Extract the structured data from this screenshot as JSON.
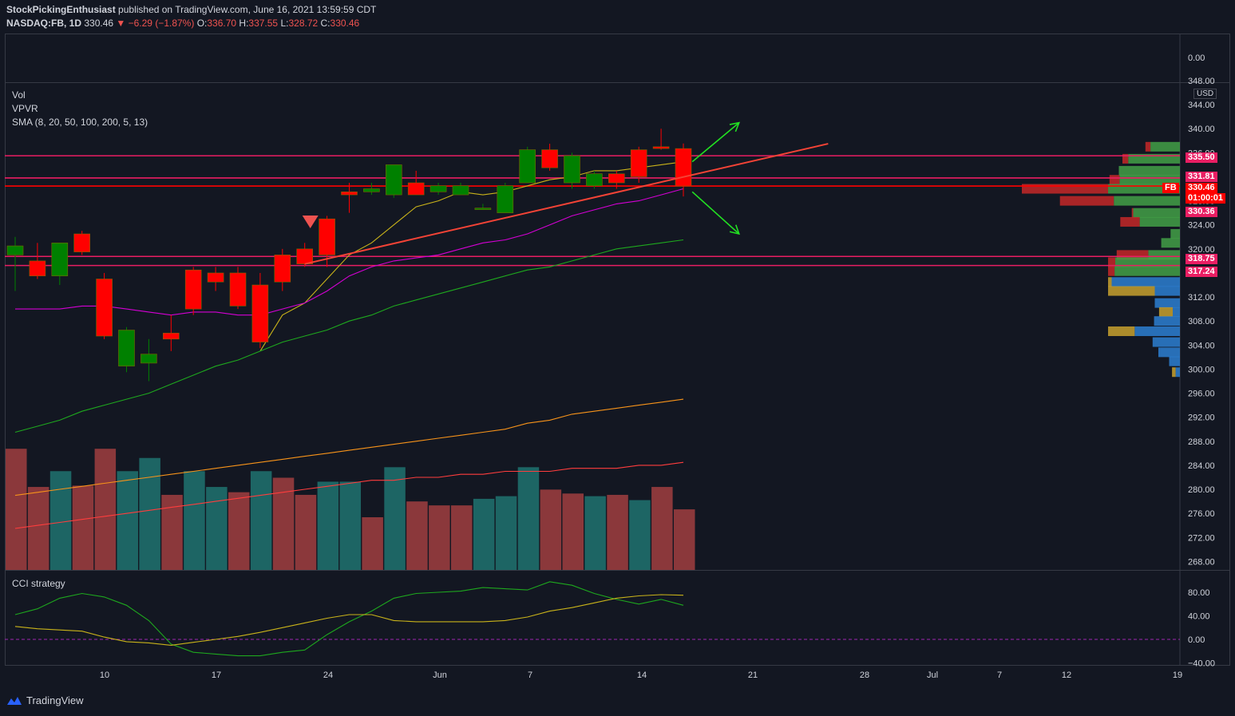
{
  "header": {
    "author": "StockPickingEnthusiast",
    "published": "published on TradingView.com, June 16, 2021 13:59:59 CDT",
    "symbol": "NASDAQ:FB, 1D",
    "last": "330.46",
    "change": "▼ −6.29 (−1.87%)",
    "o_label": "O:",
    "o": "336.70",
    "h_label": "H:",
    "h": "337.55",
    "l_label": "L:",
    "l": "328.72",
    "c_label": "C:",
    "c": "330.46"
  },
  "legend": {
    "vol": "Vol",
    "vpvr": "VPVR",
    "sma": "SMA (8, 20, 50, 100, 200, 5, 13)",
    "cci": "CCI strategy"
  },
  "currency": "USD",
  "top_pane_label": "0.00",
  "price_tags": [
    {
      "text": "335.50",
      "color": "#e91e63"
    },
    {
      "text": "331.81",
      "color": "#e91e63"
    },
    {
      "text": "330.46",
      "color": "#ff0000"
    },
    {
      "text": "01:00:01",
      "color": "#ff0000"
    },
    {
      "text": "330.36",
      "color": "#e91e63"
    },
    {
      "text": "318.75",
      "color": "#e91e63"
    },
    {
      "text": "317.24",
      "color": "#e91e63"
    }
  ],
  "symbol_tag": "FB",
  "price_axis": [
    "348.00",
    "344.00",
    "340.00",
    "336.00",
    "332.00",
    "328.00",
    "324.00",
    "320.00",
    "316.00",
    "312.00",
    "308.00",
    "304.00",
    "300.00",
    "296.00",
    "292.00",
    "288.00",
    "284.00",
    "280.00",
    "276.00",
    "272.00",
    "268.00"
  ],
  "cci_axis": [
    "80.00",
    "40.00",
    "0.00",
    "−40.00"
  ],
  "time_axis": [
    "10",
    "17",
    "24",
    "Jun",
    "7",
    "14",
    "21",
    "28",
    "Jul",
    "7",
    "12",
    "19"
  ],
  "footer": {
    "brand": "TradingView"
  },
  "colors": {
    "up": "#089981",
    "down": "#f23645",
    "candle_up": "#008000",
    "candle_down": "#ff0000",
    "bg": "#131722"
  },
  "chart_data": {
    "type": "candlestick",
    "candles": [
      {
        "o": 319,
        "h": 322,
        "l": 313,
        "c": 320.5
      },
      {
        "o": 318,
        "h": 321,
        "l": 315,
        "c": 315.5
      },
      {
        "o": 315.5,
        "h": 321,
        "l": 314,
        "c": 321
      },
      {
        "o": 322.5,
        "h": 323,
        "l": 319,
        "c": 319.5
      },
      {
        "o": 315,
        "h": 316,
        "l": 305,
        "c": 305.5
      },
      {
        "o": 300.5,
        "h": 307,
        "l": 299.5,
        "c": 306.5
      },
      {
        "o": 301,
        "h": 305,
        "l": 298,
        "c": 302.5
      },
      {
        "o": 306,
        "h": 309,
        "l": 303,
        "c": 305
      },
      {
        "o": 316.5,
        "h": 317,
        "l": 309,
        "c": 310
      },
      {
        "o": 316,
        "h": 317,
        "l": 313,
        "c": 314.5
      },
      {
        "o": 316,
        "h": 317,
        "l": 310,
        "c": 310.5
      },
      {
        "o": 314,
        "h": 316,
        "l": 303.5,
        "c": 304.5
      },
      {
        "o": 319,
        "h": 320,
        "l": 313,
        "c": 314.5
      },
      {
        "o": 320,
        "h": 321,
        "l": 317,
        "c": 317.5
      },
      {
        "o": 325,
        "h": 325.5,
        "l": 317,
        "c": 319
      },
      {
        "o": 329.5,
        "h": 331,
        "l": 326,
        "c": 329
      },
      {
        "o": 329.5,
        "h": 331,
        "l": 329,
        "c": 330
      },
      {
        "o": 329,
        "h": 334,
        "l": 328.5,
        "c": 334
      },
      {
        "o": 331,
        "h": 333,
        "l": 329,
        "c": 329
      },
      {
        "o": 329.5,
        "h": 331,
        "l": 329,
        "c": 330.5
      },
      {
        "o": 329,
        "h": 331,
        "l": 329,
        "c": 330.5
      },
      {
        "o": 326.8,
        "h": 327.5,
        "l": 326.5,
        "c": 326.8
      },
      {
        "o": 326,
        "h": 331,
        "l": 326,
        "c": 330.5
      },
      {
        "o": 331,
        "h": 337,
        "l": 331,
        "c": 336.5
      },
      {
        "o": 336.5,
        "h": 337.5,
        "l": 333,
        "c": 333.5
      },
      {
        "o": 331,
        "h": 336,
        "l": 330,
        "c": 335.5
      },
      {
        "o": 330.5,
        "h": 333,
        "l": 330,
        "c": 332.5
      },
      {
        "o": 332.5,
        "h": 333,
        "l": 330,
        "c": 331
      },
      {
        "o": 336.5,
        "h": 337,
        "l": 331,
        "c": 332
      },
      {
        "o": 337,
        "h": 340,
        "l": 336.5,
        "c": 336.7
      },
      {
        "o": 336.7,
        "h": 337.55,
        "l": 328.72,
        "c": 330.46
      }
    ],
    "volume": [
      {
        "v": 0.92,
        "up": false
      },
      {
        "v": 0.63,
        "up": false
      },
      {
        "v": 0.75,
        "up": true
      },
      {
        "v": 0.64,
        "up": false
      },
      {
        "v": 0.92,
        "up": false
      },
      {
        "v": 0.75,
        "up": true
      },
      {
        "v": 0.85,
        "up": true
      },
      {
        "v": 0.57,
        "up": false
      },
      {
        "v": 0.75,
        "up": true
      },
      {
        "v": 0.63,
        "up": true
      },
      {
        "v": 0.59,
        "up": false
      },
      {
        "v": 0.75,
        "up": true
      },
      {
        "v": 0.7,
        "up": false
      },
      {
        "v": 0.57,
        "up": false
      },
      {
        "v": 0.67,
        "up": true
      },
      {
        "v": 0.67,
        "up": true
      },
      {
        "v": 0.4,
        "up": false
      },
      {
        "v": 0.78,
        "up": true
      },
      {
        "v": 0.52,
        "up": false
      },
      {
        "v": 0.49,
        "up": false
      },
      {
        "v": 0.49,
        "up": false
      },
      {
        "v": 0.54,
        "up": true
      },
      {
        "v": 0.56,
        "up": true
      },
      {
        "v": 0.78,
        "up": true
      },
      {
        "v": 0.61,
        "up": false
      },
      {
        "v": 0.58,
        "up": false
      },
      {
        "v": 0.56,
        "up": true
      },
      {
        "v": 0.57,
        "up": false
      },
      {
        "v": 0.53,
        "up": true
      },
      {
        "v": 0.63,
        "up": false
      },
      {
        "v": 0.46,
        "up": false
      }
    ],
    "sma": [
      {
        "name": "SMA 5",
        "color": "#c9b31a",
        "values": [
          null,
          null,
          null,
          null,
          null,
          null,
          null,
          null,
          null,
          null,
          null,
          303,
          309,
          311,
          315,
          319,
          321,
          324,
          327,
          328,
          329.5,
          329,
          329.5,
          330.5,
          331.5,
          332,
          333,
          333,
          333.5,
          334,
          334.5
        ]
      },
      {
        "name": "SMA 13",
        "color": "#d400d4",
        "values": [
          310,
          310,
          310,
          310.5,
          310.5,
          310,
          309.5,
          309,
          309.5,
          309.5,
          309,
          309,
          310,
          311,
          313,
          315.5,
          317,
          318,
          318.5,
          319,
          320,
          321,
          321.5,
          322.5,
          324,
          325.5,
          326.5,
          327.5,
          328,
          329,
          330
        ]
      },
      {
        "name": "SMA 20",
        "color": "#1ea81e",
        "values": [
          289.5,
          290.5,
          291.5,
          293,
          294,
          295,
          296,
          297.5,
          299,
          300.5,
          301.5,
          303,
          304.5,
          305.5,
          306.5,
          308,
          309,
          310.5,
          311.5,
          312.5,
          313.5,
          314.5,
          315.5,
          316.5,
          317,
          318,
          319,
          320,
          320.5,
          321,
          321.5
        ]
      },
      {
        "name": "SMA 50",
        "color": "#f7931a",
        "values": [
          279,
          279.5,
          280,
          280.5,
          281,
          281.5,
          282,
          282.5,
          283,
          283.5,
          284,
          284.5,
          285,
          285.5,
          286,
          286.5,
          287,
          287.5,
          288,
          288.5,
          289,
          289.5,
          290,
          291,
          291.5,
          292.5,
          293,
          293.5,
          294,
          294.5,
          295
        ]
      },
      {
        "name": "SMA 100",
        "color": "#ff3d3d",
        "values": [
          273.5,
          274,
          274.5,
          275,
          275.5,
          276,
          276.5,
          277,
          277.5,
          278,
          278.5,
          279,
          279.5,
          280,
          280.5,
          281,
          281.5,
          281.5,
          282,
          282,
          282.5,
          282.5,
          283,
          283,
          283,
          283.5,
          283.5,
          283.5,
          284,
          284,
          284.5
        ]
      }
    ],
    "cci": [
      {
        "name": "CCI fast",
        "color": "#1ea81e",
        "values": [
          42,
          52,
          70,
          78,
          72,
          58,
          32,
          -8,
          -22,
          -25,
          -28,
          -28,
          -22,
          -18,
          8,
          30,
          48,
          70,
          78,
          80,
          82,
          88,
          86,
          84,
          98,
          92,
          78,
          68,
          60,
          68,
          58
        ]
      },
      {
        "name": "CCI slow",
        "color": "#c9b31a",
        "values": [
          22,
          18,
          16,
          14,
          4,
          -4,
          -6,
          -10,
          -5,
          0,
          5,
          12,
          20,
          28,
          36,
          42,
          42,
          32,
          30,
          30,
          30,
          30,
          32,
          38,
          48,
          54,
          62,
          70,
          74,
          76,
          75
        ]
      },
      {
        "name": "zero",
        "color": "#9c27b0",
        "values": [
          0
        ]
      }
    ],
    "hlines": [
      335.5,
      331.81,
      330.46,
      318.75,
      317.24
    ],
    "vpvr": [
      {
        "p": 337,
        "up": 0.41,
        "down": 0.48,
        "type": "v"
      },
      {
        "p": 335,
        "up": 0.72,
        "down": 0.8,
        "type": "v"
      },
      {
        "p": 333,
        "up": 0.85,
        "down": 0.85,
        "type": "v"
      },
      {
        "p": 331.5,
        "up": 0.84,
        "down": 0.98,
        "type": "v"
      },
      {
        "p": 330,
        "up": 1.0,
        "down": 2.2,
        "type": "v"
      },
      {
        "p": 328,
        "up": 0.92,
        "down": 1.67,
        "type": "v"
      },
      {
        "p": 326,
        "up": 0.65,
        "down": 0.67,
        "type": "v"
      },
      {
        "p": 324.5,
        "up": 0.56,
        "down": 0.83,
        "type": "v"
      },
      {
        "p": 322.5,
        "up": 0.13,
        "down": 0.05,
        "type": "v"
      },
      {
        "p": 321,
        "up": 0.26,
        "down": 0.2,
        "type": "v"
      },
      {
        "p": 319,
        "up": 0.44,
        "down": 0.88,
        "type": "v"
      },
      {
        "p": 317.8,
        "up": 0.9,
        "down": 1.0,
        "type": "v"
      },
      {
        "p": 316.3,
        "up": 0.91,
        "down": 1.0,
        "type": "v"
      },
      {
        "p": 314.5,
        "up": 0.95,
        "down": 1.0,
        "type": "va"
      },
      {
        "p": 313,
        "up": 0.35,
        "down": 1.0,
        "type": "va"
      },
      {
        "p": 311,
        "up": 0.35,
        "down": 0.35,
        "type": "va"
      },
      {
        "p": 309.5,
        "up": 0.1,
        "down": 0.29,
        "type": "va"
      },
      {
        "p": 308,
        "up": 0.36,
        "down": 0.36,
        "type": "va"
      },
      {
        "p": 306.3,
        "up": 0.63,
        "down": 1.0,
        "type": "va"
      },
      {
        "p": 304.5,
        "up": 0.38,
        "down": 0.38,
        "type": "va"
      },
      {
        "p": 302.8,
        "up": 0.3,
        "down": 0.3,
        "type": "va"
      },
      {
        "p": 301.3,
        "up": 0.15,
        "down": 0.15,
        "type": "va"
      },
      {
        "p": 299.5,
        "up": 0.06,
        "down": 0.11,
        "type": "va"
      }
    ],
    "annotations": {
      "trendline": {
        "from": {
          "bar": 13,
          "price": 317.5
        },
        "to": {
          "bar": 36.5,
          "price": 337.5
        }
      },
      "arrow_up": {
        "from": {
          "bar": 30.4,
          "price": 334.5
        },
        "to": {
          "bar": 32.5,
          "price": 341
        }
      },
      "arrow_down": {
        "from": {
          "bar": 30.4,
          "price": 329.5
        },
        "to": {
          "bar": 32.5,
          "price": 322.5
        }
      },
      "sell_marker": {
        "bar": 13,
        "price": 324.5
      }
    },
    "ylim_price": [
      267,
      348
    ],
    "ylim_cci": [
      -40,
      100
    ]
  }
}
